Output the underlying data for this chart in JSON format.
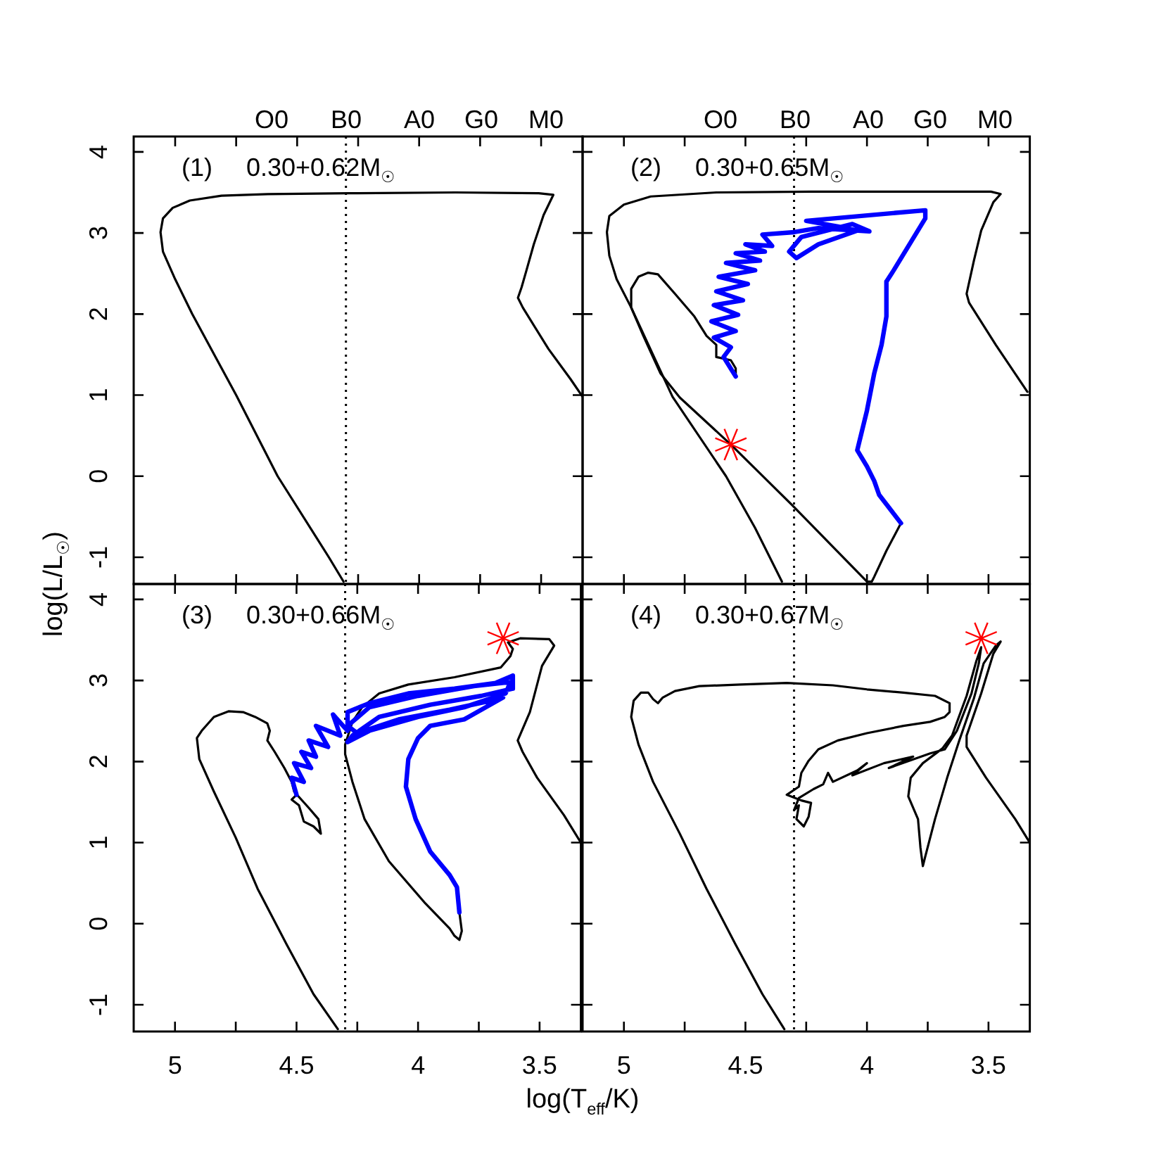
{
  "chart_data": [
    {
      "type": "line",
      "annotations": [
        "(1)",
        "0.30+0.62M$_{☉}$",
        "O0",
        "B0",
        "A0",
        "G0",
        "M0"
      ],
      "ylabel": "log(L/L$_{☉}$)",
      "xlim": [
        5.17,
        3.33
      ],
      "ylim": [
        -1.33,
        4.19
      ],
      "xticks": [
        5,
        {
          "value": 4.75,
          "label": null
        },
        4.5,
        {
          "value": 4.25,
          "label": null
        },
        4,
        {
          "value": 3.75,
          "label": null
        },
        3.5
      ],
      "yticks": [
        -1,
        0,
        1,
        2,
        3,
        4
      ],
      "tick_labels": "y",
      "ref_lines": [
        {
          "axis": "x",
          "value": 4.3,
          "color": "#000000",
          "line_style": "dotted"
        }
      ],
      "series": [
        {
          "color": "#000000",
          "marker": "none",
          "x": [
            4.31,
            4.37,
            4.58,
            4.75,
            4.93,
            5.0,
            5.05,
            5.06,
            5.05,
            5.01,
            4.94,
            4.81,
            4.62,
            4.29,
            3.85,
            3.51,
            3.45,
            3.49,
            3.53,
            3.56,
            3.58,
            3.595,
            3.575,
            3.47,
            3.38,
            3.33
          ],
          "values": [
            -1.3,
            -1.0,
            0.0,
            1.0,
            2.0,
            2.43,
            2.77,
            3.01,
            3.18,
            3.31,
            3.4,
            3.46,
            3.48,
            3.49,
            3.5,
            3.49,
            3.47,
            3.22,
            2.86,
            2.54,
            2.33,
            2.2,
            2.08,
            1.57,
            1.2,
            0.98
          ]
        }
      ]
    },
    {
      "type": "line",
      "annotations": [
        "(2)",
        "0.30+0.65M$_{☉}$",
        "O0",
        "B0",
        "A0",
        "G0",
        "M0"
      ],
      "xlim": [
        5.17,
        3.33
      ],
      "ylim": [
        -1.33,
        4.19
      ],
      "xticks": [
        5,
        {
          "value": 4.75,
          "label": null
        },
        4.5,
        {
          "value": 4.25,
          "label": null
        },
        4,
        {
          "value": 3.75,
          "label": null
        },
        3.5
      ],
      "yticks": [
        -1,
        0,
        1,
        2,
        3,
        4
      ],
      "tick_labels": false,
      "ref_lines": [
        {
          "axis": "x",
          "value": 4.3,
          "color": "#000000",
          "line_style": "dotted"
        }
      ],
      "series": [
        {
          "color": "#000000",
          "marker": "none",
          "x": [
            4.35,
            4.46,
            4.58,
            4.8,
            4.89,
            4.97,
            5.03,
            5.06,
            5.07,
            5.06,
            5.0,
            4.89,
            4.62,
            4.23,
            3.49,
            3.45,
            3.48,
            3.53,
            3.56,
            3.59,
            3.58,
            3.47,
            3.34
          ],
          "values": [
            -1.3,
            -0.64,
            0.0,
            0.98,
            1.56,
            2.08,
            2.43,
            2.72,
            3.01,
            3.21,
            3.35,
            3.45,
            3.5,
            3.51,
            3.51,
            3.48,
            3.38,
            3.03,
            2.66,
            2.25,
            2.14,
            1.62,
            1.04
          ]
        },
        {
          "color": "#000000",
          "marker": "none",
          "x": [
            3.86,
            3.92,
            3.97,
            3.98,
            4.0,
            4.16,
            4.31,
            4.56,
            4.77,
            4.85,
            4.92,
            4.97,
            4.97,
            4.94,
            4.9,
            4.86,
            4.79,
            4.71,
            4.66,
            4.62,
            4.62,
            4.56,
            4.54,
            4.54
          ],
          "values": [
            -0.58,
            -0.92,
            -1.24,
            -1.3,
            -1.3,
            -0.81,
            -0.35,
            0.39,
            0.97,
            1.27,
            1.73,
            2.08,
            2.31,
            2.46,
            2.51,
            2.49,
            2.25,
            1.97,
            1.73,
            1.62,
            1.47,
            1.43,
            1.33,
            1.23
          ]
        },
        {
          "color": "#0000ff",
          "marker": "none",
          "x": [
            4.54,
            4.59,
            4.56,
            4.63,
            4.54,
            4.64,
            4.53,
            4.63,
            4.51,
            4.62,
            4.49,
            4.61,
            4.46,
            4.58,
            4.44,
            4.54,
            4.42,
            4.5,
            4.39,
            4.43,
            4.3,
            4.2,
            3.99,
            4.06,
            4.27,
            4.32,
            4.29,
            4.2,
            4.04,
            4.12,
            4.25,
            3.76,
            3.76,
            3.89,
            3.92,
            3.92,
            3.94,
            3.97,
            4.0,
            4.04,
            4.0,
            3.97,
            3.95,
            3.86
          ],
          "values": [
            1.23,
            1.47,
            1.59,
            1.71,
            1.79,
            1.91,
            1.99,
            2.11,
            2.17,
            2.28,
            2.37,
            2.46,
            2.54,
            2.63,
            2.66,
            2.75,
            2.77,
            2.86,
            2.84,
            2.98,
            3.01,
            3.06,
            3.02,
            3.11,
            2.95,
            2.77,
            2.69,
            2.86,
            3.03,
            3.08,
            3.15,
            3.28,
            3.18,
            2.54,
            2.4,
            1.97,
            1.62,
            1.27,
            0.81,
            0.32,
            0.12,
            -0.06,
            -0.23,
            -0.58
          ]
        },
        {
          "type": "scatter",
          "color": "#ff0000",
          "marker": "cross",
          "x": [
            4.56
          ],
          "values": [
            0.39
          ]
        }
      ]
    },
    {
      "type": "line",
      "annotations": [
        "(3)",
        "0.30+0.66M$_{☉}$"
      ],
      "xlabel": "log(T$_{eff}$/K)",
      "xlim": [
        5.17,
        3.33
      ],
      "ylim": [
        -1.33,
        4.19
      ],
      "xticks": [
        5,
        {
          "value": 4.75,
          "label": null
        },
        4.5,
        {
          "value": 4.25,
          "label": null
        },
        4,
        {
          "value": 3.75,
          "label": null
        },
        3.5
      ],
      "yticks": [
        -1,
        0,
        1,
        2,
        3,
        4
      ],
      "ref_lines": [
        {
          "axis": "x",
          "value": 4.3,
          "color": "#000000",
          "line_style": "dotted"
        }
      ],
      "series": [
        {
          "color": "#000000",
          "marker": "none",
          "x": [
            4.33,
            4.43,
            4.54,
            4.66,
            4.75,
            4.84,
            4.9,
            4.91,
            4.89,
            4.84,
            4.78,
            4.72,
            4.67,
            4.62,
            4.61,
            4.62,
            4.59,
            4.55,
            4.52,
            4.51,
            4.45,
            4.41,
            4.4,
            4.43,
            4.47,
            4.49,
            4.52,
            4.5
          ],
          "values": [
            -1.3,
            -0.87,
            -0.26,
            0.43,
            1.06,
            1.63,
            2.03,
            2.29,
            2.38,
            2.55,
            2.62,
            2.61,
            2.55,
            2.47,
            2.38,
            2.26,
            2.12,
            1.92,
            1.75,
            1.63,
            1.43,
            1.29,
            1.11,
            1.2,
            1.26,
            1.46,
            1.53,
            1.59
          ]
        },
        {
          "color": "#000000",
          "marker": "none",
          "x": [
            3.83,
            3.82,
            3.83,
            3.85,
            3.87,
            3.97,
            4.12,
            4.22,
            4.27,
            4.3,
            4.3,
            4.27,
            4.23,
            4.16,
            4.04,
            3.85,
            3.66,
            3.62,
            3.61,
            3.63,
            3.58,
            3.46,
            3.44,
            3.49,
            3.54,
            3.59,
            3.57,
            3.51,
            3.4,
            3.33
          ],
          "values": [
            0.14,
            -0.09,
            -0.2,
            -0.15,
            -0.06,
            0.25,
            0.77,
            1.29,
            1.75,
            2.09,
            2.21,
            2.49,
            2.67,
            2.84,
            2.95,
            3.04,
            3.16,
            3.3,
            3.39,
            3.47,
            3.52,
            3.51,
            3.43,
            3.18,
            2.61,
            2.26,
            2.12,
            1.8,
            1.34,
            1.0
          ]
        },
        {
          "color": "#0000ff",
          "marker": "none",
          "x": [
            4.5,
            4.52,
            4.47,
            4.51,
            4.44,
            4.48,
            4.42,
            4.45,
            4.37,
            4.42,
            4.32,
            4.35,
            4.29,
            4.29,
            4.2,
            4.04,
            3.85,
            3.68,
            3.61,
            3.61,
            3.74,
            3.95,
            4.16,
            4.27,
            4.29,
            4.2,
            4.0,
            3.81,
            3.64,
            3.62,
            3.77,
            4.0,
            4.2,
            4.29,
            4.25,
            4.08,
            3.87,
            3.7,
            3.65,
            3.81,
            3.95,
            4.0,
            4.04,
            4.05,
            4.01,
            3.95,
            3.87,
            3.84,
            3.83
          ],
          "values": [
            1.59,
            1.8,
            1.75,
            1.98,
            1.92,
            2.12,
            2.06,
            2.26,
            2.18,
            2.44,
            2.32,
            2.58,
            2.38,
            2.61,
            2.72,
            2.84,
            2.9,
            2.97,
            3.06,
            2.9,
            2.81,
            2.7,
            2.55,
            2.32,
            2.24,
            2.38,
            2.55,
            2.67,
            2.84,
            2.98,
            2.93,
            2.81,
            2.67,
            2.44,
            2.35,
            2.52,
            2.64,
            2.75,
            2.79,
            2.52,
            2.44,
            2.29,
            2.03,
            1.69,
            1.29,
            0.89,
            0.6,
            0.45,
            0.14
          ]
        },
        {
          "type": "scatter",
          "color": "#ff0000",
          "marker": "cross",
          "x": [
            3.65
          ],
          "values": [
            3.52
          ]
        }
      ]
    },
    {
      "type": "line",
      "annotations": [
        "(4)",
        "0.30+0.67M$_{☉}$"
      ],
      "xlim": [
        5.17,
        3.33
      ],
      "ylim": [
        -1.33,
        4.19
      ],
      "xticks": [
        5,
        {
          "value": 4.75,
          "label": null
        },
        4.5,
        {
          "value": 4.25,
          "label": null
        },
        4,
        {
          "value": 3.75,
          "label": null
        },
        3.5
      ],
      "yticks": [
        -1,
        0,
        1,
        2,
        3,
        4
      ],
      "tick_labels": "x",
      "ref_lines": [
        {
          "axis": "x",
          "value": 4.3,
          "color": "#000000",
          "line_style": "dotted"
        }
      ],
      "series": [
        {
          "color": "#000000",
          "marker": "none",
          "x": [
            4.34,
            4.43,
            4.54,
            4.66,
            4.77,
            4.88,
            4.94,
            4.97,
            4.96,
            4.93,
            4.9,
            4.88,
            4.86,
            4.84,
            4.79,
            4.69,
            4.52,
            4.33,
            4.14,
            4.0,
            3.85,
            3.72,
            3.66,
            3.66,
            3.68,
            3.74,
            3.85,
            4.0,
            4.12,
            4.2,
            4.24,
            4.27,
            4.28,
            4.33,
            4.27,
            4.23,
            4.24,
            4.26,
            4.29,
            4.28,
            4.3,
            4.28,
            4.22,
            4.18,
            4.16,
            4.14,
            4.04,
            4.0,
            4.06,
            3.93,
            3.81,
            3.91,
            3.74,
            3.68,
            3.63,
            3.57,
            3.54,
            3.53,
            3.55,
            3.59,
            3.65,
            3.69,
            3.77,
            3.82,
            3.83,
            3.79,
            3.78,
            3.77,
            3.76,
            3.72,
            3.67,
            3.62,
            3.56,
            3.52,
            3.47,
            3.45,
            3.48,
            3.53,
            3.59,
            3.59,
            3.51,
            3.39,
            3.33
          ],
          "values": [
            -1.3,
            -0.87,
            -0.26,
            0.43,
            1.11,
            1.75,
            2.21,
            2.55,
            2.75,
            2.85,
            2.85,
            2.77,
            2.72,
            2.79,
            2.87,
            2.93,
            2.95,
            2.97,
            2.94,
            2.89,
            2.85,
            2.81,
            2.72,
            2.61,
            2.55,
            2.49,
            2.44,
            2.35,
            2.26,
            2.15,
            2.01,
            1.86,
            1.69,
            1.59,
            1.52,
            1.49,
            1.32,
            1.2,
            1.29,
            1.46,
            1.4,
            1.55,
            1.66,
            1.72,
            1.86,
            1.75,
            1.89,
            1.98,
            1.83,
            1.98,
            2.06,
            1.92,
            2.1,
            2.15,
            2.38,
            2.84,
            3.21,
            3.41,
            3.24,
            2.81,
            2.32,
            2.16,
            1.98,
            1.8,
            1.57,
            1.29,
            0.94,
            0.71,
            0.83,
            1.29,
            1.8,
            2.26,
            2.78,
            3.21,
            3.43,
            3.48,
            3.33,
            2.84,
            2.32,
            2.18,
            1.8,
            1.29,
            1.0
          ]
        },
        {
          "type": "scatter",
          "color": "#ff0000",
          "marker": "cross",
          "x": [
            3.53
          ],
          "values": [
            3.52
          ]
        }
      ]
    }
  ]
}
